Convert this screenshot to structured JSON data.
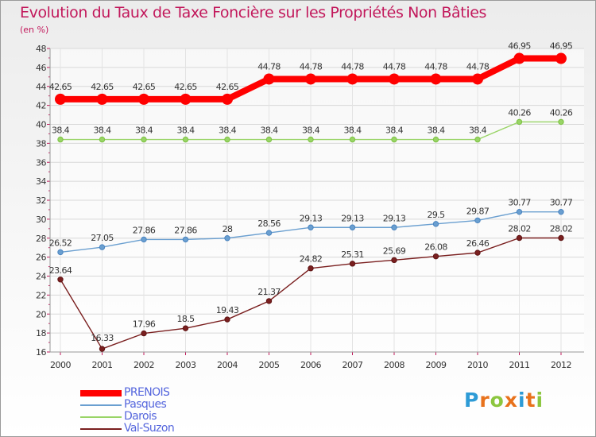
{
  "header": {
    "title": "Evolution du Taux de Taxe Foncière sur les Propriétés Non Bâties",
    "subtitle": "(en %)"
  },
  "logo": {
    "text": "Proxiti",
    "colors": [
      "#2e9bd6",
      "#e8721c",
      "#8cc63f",
      "#e8721c",
      "#2e9bd6",
      "#e8721c",
      "#8cc63f"
    ]
  },
  "chart_data": {
    "type": "line",
    "title": "Evolution du Taux de Taxe Foncière sur les Propriétés Non Bâties",
    "ylabel": "(en %)",
    "xlabel": "",
    "categories": [
      "2000",
      "2001",
      "2002",
      "2003",
      "2004",
      "2005",
      "2006",
      "2007",
      "2008",
      "2009",
      "2010",
      "2011",
      "2012"
    ],
    "ylim": [
      16,
      48
    ],
    "yticks": [
      "16",
      "18",
      "20",
      "22",
      "24",
      "26",
      "28",
      "30",
      "32",
      "34",
      "36",
      "38",
      "40",
      "42",
      "44",
      "46",
      "48"
    ],
    "grid": true,
    "legend_position": "bottom-left",
    "series": [
      {
        "name": "PRENOIS",
        "color": "#ff0000",
        "emphasis": true,
        "values": [
          42.65,
          42.65,
          42.65,
          42.65,
          42.65,
          44.78,
          44.78,
          44.78,
          44.78,
          44.78,
          44.78,
          46.95,
          46.95
        ],
        "labels": [
          "42.65",
          "42.65",
          "42.65",
          "42.65",
          "42.65",
          "44.78",
          "44.78",
          "44.78",
          "44.78",
          "44.78",
          "44.78",
          "46.95",
          "46.95"
        ]
      },
      {
        "name": "Pasques",
        "color": "#6a9fd0",
        "dot": "#4a84c0",
        "values": [
          26.52,
          27.05,
          27.86,
          27.86,
          28,
          28.56,
          29.13,
          29.13,
          29.13,
          29.5,
          29.87,
          30.77,
          30.77
        ],
        "labels": [
          "26.52",
          "27.05",
          "27.86",
          "27.86",
          "28",
          "28.56",
          "29.13",
          "29.13",
          "29.13",
          "29.5",
          "29.87",
          "30.77",
          "30.77"
        ]
      },
      {
        "name": "Darois",
        "color": "#99d466",
        "dot": "#7cc242",
        "values": [
          38.4,
          38.4,
          38.4,
          38.4,
          38.4,
          38.4,
          38.4,
          38.4,
          38.4,
          38.4,
          38.4,
          40.26,
          40.26
        ],
        "labels": [
          "38.4",
          "38.4",
          "38.4",
          "38.4",
          "38.4",
          "38.4",
          "38.4",
          "38.4",
          "38.4",
          "38.4",
          "38.4",
          "40.26",
          "40.26"
        ]
      },
      {
        "name": "Val-Suzon",
        "color": "#7a1f1f",
        "dot": "#5e1414",
        "values": [
          23.64,
          16.33,
          17.96,
          18.5,
          19.43,
          21.37,
          24.82,
          25.31,
          25.69,
          26.08,
          26.46,
          28.02,
          28.02
        ],
        "labels": [
          "23.64",
          "16.33",
          "17.96",
          "18.5",
          "19.43",
          "21.37",
          "24.82",
          "25.31",
          "25.69",
          "26.08",
          "26.46",
          "28.02",
          "28.02"
        ]
      }
    ]
  }
}
